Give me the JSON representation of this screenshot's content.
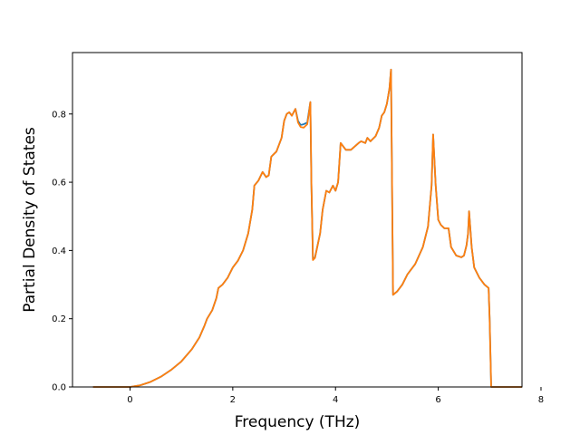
{
  "chart_data": {
    "type": "line",
    "title": "",
    "xlabel": "Frequency (THz)",
    "ylabel": "Partial Density of States",
    "xlim": [
      -1.12,
      7.63
    ],
    "ylim": [
      0.0,
      0.98
    ],
    "xticks": [
      0,
      2,
      4,
      6,
      8
    ],
    "yticks": [
      0.0,
      0.2,
      0.4,
      0.6,
      0.8
    ],
    "xtick_labels": [
      "0",
      "2",
      "4",
      "6",
      "8"
    ],
    "ytick_labels": [
      "0.0",
      "0.2",
      "0.4",
      "0.6",
      "0.8"
    ],
    "grid": false,
    "legend": "none",
    "series": [
      {
        "color": "#1f77b4",
        "points": [
          [
            -0.72,
            0.0
          ],
          [
            0.0,
            0.0
          ],
          [
            0.2,
            0.005
          ],
          [
            0.4,
            0.015
          ],
          [
            0.6,
            0.03
          ],
          [
            0.8,
            0.05
          ],
          [
            1.0,
            0.075
          ],
          [
            1.2,
            0.11
          ],
          [
            1.35,
            0.145
          ],
          [
            1.45,
            0.18
          ],
          [
            1.5,
            0.2
          ],
          [
            1.6,
            0.225
          ],
          [
            1.68,
            0.26
          ],
          [
            1.72,
            0.29
          ],
          [
            1.8,
            0.3
          ],
          [
            1.9,
            0.32
          ],
          [
            2.0,
            0.35
          ],
          [
            2.1,
            0.37
          ],
          [
            2.2,
            0.4
          ],
          [
            2.3,
            0.45
          ],
          [
            2.38,
            0.52
          ],
          [
            2.42,
            0.59
          ],
          [
            2.5,
            0.605
          ],
          [
            2.58,
            0.63
          ],
          [
            2.65,
            0.615
          ],
          [
            2.7,
            0.62
          ],
          [
            2.75,
            0.675
          ],
          [
            2.85,
            0.69
          ],
          [
            2.95,
            0.73
          ],
          [
            3.0,
            0.78
          ],
          [
            3.05,
            0.8
          ],
          [
            3.1,
            0.805
          ],
          [
            3.15,
            0.795
          ],
          [
            3.22,
            0.815
          ],
          [
            3.27,
            0.78
          ],
          [
            3.32,
            0.768
          ],
          [
            3.38,
            0.77
          ],
          [
            3.45,
            0.775
          ],
          [
            3.48,
            0.805
          ],
          [
            3.51,
            0.835
          ],
          [
            3.53,
            0.6
          ],
          [
            3.56,
            0.375
          ],
          [
            3.6,
            0.38
          ],
          [
            3.7,
            0.45
          ],
          [
            3.75,
            0.52
          ],
          [
            3.82,
            0.575
          ],
          [
            3.88,
            0.57
          ],
          [
            3.95,
            0.59
          ],
          [
            4.0,
            0.575
          ],
          [
            4.05,
            0.6
          ],
          [
            4.1,
            0.715
          ],
          [
            4.2,
            0.695
          ],
          [
            4.3,
            0.695
          ],
          [
            4.45,
            0.715
          ],
          [
            4.5,
            0.72
          ],
          [
            4.58,
            0.715
          ],
          [
            4.62,
            0.73
          ],
          [
            4.68,
            0.72
          ],
          [
            4.78,
            0.735
          ],
          [
            4.85,
            0.76
          ],
          [
            4.9,
            0.795
          ],
          [
            4.95,
            0.805
          ],
          [
            5.0,
            0.83
          ],
          [
            5.05,
            0.875
          ],
          [
            5.08,
            0.93
          ],
          [
            5.1,
            0.6
          ],
          [
            5.12,
            0.27
          ],
          [
            5.2,
            0.28
          ],
          [
            5.3,
            0.3
          ],
          [
            5.4,
            0.33
          ],
          [
            5.55,
            0.36
          ],
          [
            5.7,
            0.41
          ],
          [
            5.8,
            0.47
          ],
          [
            5.87,
            0.59
          ],
          [
            5.9,
            0.74
          ],
          [
            5.95,
            0.59
          ],
          [
            6.0,
            0.49
          ],
          [
            6.05,
            0.475
          ],
          [
            6.12,
            0.465
          ],
          [
            6.2,
            0.465
          ],
          [
            6.25,
            0.41
          ],
          [
            6.35,
            0.385
          ],
          [
            6.45,
            0.38
          ],
          [
            6.5,
            0.385
          ],
          [
            6.55,
            0.415
          ],
          [
            6.58,
            0.45
          ],
          [
            6.6,
            0.515
          ],
          [
            6.65,
            0.41
          ],
          [
            6.7,
            0.35
          ],
          [
            6.8,
            0.32
          ],
          [
            6.9,
            0.3
          ],
          [
            6.98,
            0.29
          ],
          [
            7.0,
            0.2
          ],
          [
            7.03,
            0.0
          ],
          [
            7.63,
            0.0
          ]
        ]
      },
      {
        "color": "#ff7f0e",
        "points": [
          [
            -0.72,
            0.0
          ],
          [
            0.0,
            0.0
          ],
          [
            0.2,
            0.005
          ],
          [
            0.4,
            0.015
          ],
          [
            0.6,
            0.03
          ],
          [
            0.8,
            0.05
          ],
          [
            1.0,
            0.075
          ],
          [
            1.2,
            0.11
          ],
          [
            1.35,
            0.145
          ],
          [
            1.45,
            0.18
          ],
          [
            1.5,
            0.2
          ],
          [
            1.6,
            0.225
          ],
          [
            1.68,
            0.26
          ],
          [
            1.72,
            0.29
          ],
          [
            1.8,
            0.3
          ],
          [
            1.9,
            0.32
          ],
          [
            2.0,
            0.35
          ],
          [
            2.1,
            0.37
          ],
          [
            2.2,
            0.4
          ],
          [
            2.3,
            0.45
          ],
          [
            2.38,
            0.52
          ],
          [
            2.42,
            0.59
          ],
          [
            2.5,
            0.605
          ],
          [
            2.58,
            0.63
          ],
          [
            2.65,
            0.615
          ],
          [
            2.7,
            0.62
          ],
          [
            2.75,
            0.675
          ],
          [
            2.85,
            0.69
          ],
          [
            2.95,
            0.73
          ],
          [
            3.0,
            0.78
          ],
          [
            3.05,
            0.8
          ],
          [
            3.1,
            0.805
          ],
          [
            3.15,
            0.795
          ],
          [
            3.22,
            0.815
          ],
          [
            3.27,
            0.775
          ],
          [
            3.32,
            0.762
          ],
          [
            3.38,
            0.76
          ],
          [
            3.45,
            0.77
          ],
          [
            3.48,
            0.8
          ],
          [
            3.51,
            0.835
          ],
          [
            3.53,
            0.6
          ],
          [
            3.56,
            0.372
          ],
          [
            3.6,
            0.378
          ],
          [
            3.7,
            0.45
          ],
          [
            3.75,
            0.52
          ],
          [
            3.82,
            0.575
          ],
          [
            3.88,
            0.57
          ],
          [
            3.95,
            0.59
          ],
          [
            4.0,
            0.575
          ],
          [
            4.05,
            0.6
          ],
          [
            4.1,
            0.715
          ],
          [
            4.2,
            0.695
          ],
          [
            4.3,
            0.695
          ],
          [
            4.45,
            0.715
          ],
          [
            4.5,
            0.72
          ],
          [
            4.58,
            0.715
          ],
          [
            4.62,
            0.73
          ],
          [
            4.68,
            0.72
          ],
          [
            4.78,
            0.735
          ],
          [
            4.85,
            0.76
          ],
          [
            4.9,
            0.795
          ],
          [
            4.95,
            0.805
          ],
          [
            5.0,
            0.83
          ],
          [
            5.05,
            0.875
          ],
          [
            5.08,
            0.93
          ],
          [
            5.1,
            0.6
          ],
          [
            5.12,
            0.27
          ],
          [
            5.2,
            0.28
          ],
          [
            5.3,
            0.3
          ],
          [
            5.4,
            0.33
          ],
          [
            5.55,
            0.36
          ],
          [
            5.7,
            0.41
          ],
          [
            5.8,
            0.47
          ],
          [
            5.87,
            0.59
          ],
          [
            5.9,
            0.74
          ],
          [
            5.95,
            0.59
          ],
          [
            6.0,
            0.49
          ],
          [
            6.05,
            0.475
          ],
          [
            6.12,
            0.465
          ],
          [
            6.2,
            0.465
          ],
          [
            6.25,
            0.41
          ],
          [
            6.35,
            0.385
          ],
          [
            6.45,
            0.38
          ],
          [
            6.5,
            0.385
          ],
          [
            6.55,
            0.415
          ],
          [
            6.58,
            0.45
          ],
          [
            6.6,
            0.515
          ],
          [
            6.65,
            0.41
          ],
          [
            6.7,
            0.35
          ],
          [
            6.8,
            0.32
          ],
          [
            6.9,
            0.3
          ],
          [
            6.98,
            0.29
          ],
          [
            7.0,
            0.2
          ],
          [
            7.03,
            0.0
          ],
          [
            7.63,
            0.0
          ]
        ]
      }
    ]
  }
}
